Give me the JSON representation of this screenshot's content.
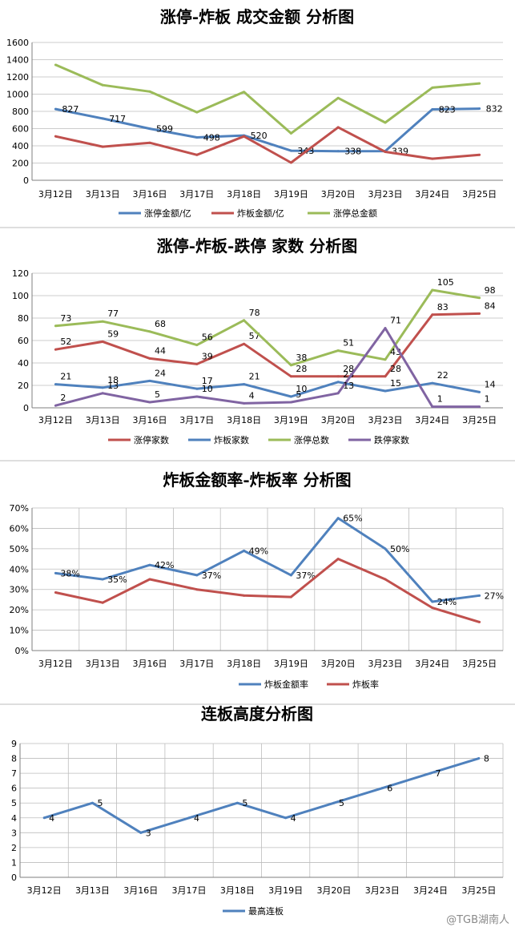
{
  "watermark": "@TGB湖南人",
  "chart_data": [
    {
      "type": "line",
      "title": "涨停-炸板 成交金额 分析图",
      "categories": [
        "3月12日",
        "3月13日",
        "3月16日",
        "3月17日",
        "3月18日",
        "3月19日",
        "3月20日",
        "3月23日",
        "3月24日",
        "3月25日"
      ],
      "ylim": [
        0,
        1600
      ],
      "yticks": [
        "0",
        "200",
        "400",
        "600",
        "800",
        "1000",
        "1200",
        "1400",
        "1600"
      ],
      "grid": "horizontal",
      "legend": "bottom",
      "series": [
        {
          "name": "涨停金额/亿",
          "color": "#4f81bd",
          "values": [
            827,
            717,
            599,
            498,
            520,
            343,
            338,
            339,
            823,
            832
          ],
          "labels": [
            "827",
            "717",
            "599",
            "498",
            "520",
            "343",
            "338",
            "339",
            "823",
            "832"
          ]
        },
        {
          "name": "炸板金额/亿",
          "color": "#c0504d",
          "values": [
            510,
            390,
            435,
            295,
            510,
            205,
            615,
            330,
            250,
            295
          ],
          "labels": [
            "",
            "",
            "",
            "",
            "",
            "",
            "",
            "",
            "",
            ""
          ]
        },
        {
          "name": "涨停总金额",
          "color": "#9bbb59",
          "values": [
            1340,
            1105,
            1030,
            790,
            1025,
            545,
            955,
            670,
            1075,
            1125
          ],
          "labels": [
            "",
            "",
            "",
            "",
            "",
            "",
            "",
            "",
            "",
            ""
          ]
        }
      ]
    },
    {
      "type": "line",
      "title": "涨停-炸板-跌停 家数 分析图",
      "categories": [
        "3月12日",
        "3月13日",
        "3月16日",
        "3月17日",
        "3月18日",
        "3月19日",
        "3月20日",
        "3月23日",
        "3月24日",
        "3月25日"
      ],
      "ylim": [
        0,
        120
      ],
      "yticks": [
        "0",
        "20",
        "40",
        "60",
        "80",
        "100",
        "120"
      ],
      "grid": "horizontal",
      "legend": "bottom",
      "series": [
        {
          "name": "涨停家数",
          "color": "#c0504d",
          "values": [
            52,
            59,
            44,
            39,
            57,
            28,
            28,
            28,
            83,
            84
          ],
          "labels": [
            "52",
            "59",
            "44",
            "39",
            "57",
            "28",
            "28",
            "28",
            "83",
            "84"
          ]
        },
        {
          "name": "炸板家数",
          "color": "#4f81bd",
          "values": [
            21,
            18,
            24,
            17,
            21,
            10,
            23,
            15,
            22,
            14
          ],
          "labels": [
            "21",
            "18",
            "24",
            "17",
            "21",
            "10",
            "23",
            "15",
            "22",
            "14"
          ]
        },
        {
          "name": "涨停总数",
          "color": "#9bbb59",
          "values": [
            73,
            77,
            68,
            56,
            78,
            38,
            51,
            43,
            105,
            98
          ],
          "labels": [
            "73",
            "77",
            "68",
            "56",
            "78",
            "38",
            "51",
            "43",
            "105",
            "98"
          ]
        },
        {
          "name": "跌停家数",
          "color": "#8064a2",
          "values": [
            2,
            13,
            5,
            10,
            4,
            5,
            13,
            71,
            1,
            1
          ],
          "labels": [
            "2",
            "13",
            "5",
            "10",
            "4",
            "5",
            "13",
            "71",
            "1",
            "1"
          ]
        }
      ]
    },
    {
      "type": "line",
      "title": "炸板金额率-炸板率 分析图",
      "categories": [
        "3月12日",
        "3月13日",
        "3月16日",
        "3月17日",
        "3月18日",
        "3月19日",
        "3月20日",
        "3月23日",
        "3月24日",
        "3月25日"
      ],
      "ylim": [
        0,
        70
      ],
      "yticks": [
        "0%",
        "10%",
        "20%",
        "30%",
        "40%",
        "50%",
        "60%",
        "70%"
      ],
      "grid": "both",
      "legend": "bottom",
      "series": [
        {
          "name": "炸板金额率",
          "color": "#4f81bd",
          "values": [
            38,
            35,
            42,
            37,
            49,
            37,
            65,
            50,
            24,
            27
          ],
          "labels": [
            "38%",
            "35%",
            "42%",
            "37%",
            "49%",
            "37%",
            "65%",
            "50%",
            "24%",
            "27%"
          ]
        },
        {
          "name": "炸板率",
          "color": "#c0504d",
          "values": [
            28.5,
            23.5,
            35,
            30,
            27,
            26.3,
            45,
            35,
            21,
            14
          ],
          "labels": [
            "",
            "",
            "",
            "",
            "",
            "",
            "",
            "",
            "",
            ""
          ]
        }
      ]
    },
    {
      "type": "line",
      "title": "连板高度分析图",
      "categories": [
        "3月12日",
        "3月13日",
        "3月16日",
        "3月17日",
        "3月18日",
        "3月19日",
        "3月20日",
        "3月23日",
        "3月24日",
        "3月25日"
      ],
      "ylim": [
        0,
        9
      ],
      "yticks": [
        "0",
        "1",
        "2",
        "3",
        "4",
        "5",
        "6",
        "7",
        "8",
        "9"
      ],
      "grid": "both",
      "legend": "bottom",
      "series": [
        {
          "name": "最高连板",
          "color": "#4f81bd",
          "values": [
            4,
            5,
            3,
            4,
            5,
            4,
            5,
            6,
            7,
            8
          ],
          "labels": [
            "4",
            "5",
            "3",
            "4",
            "5",
            "4",
            "5",
            "6",
            "7",
            "8"
          ]
        }
      ]
    }
  ]
}
